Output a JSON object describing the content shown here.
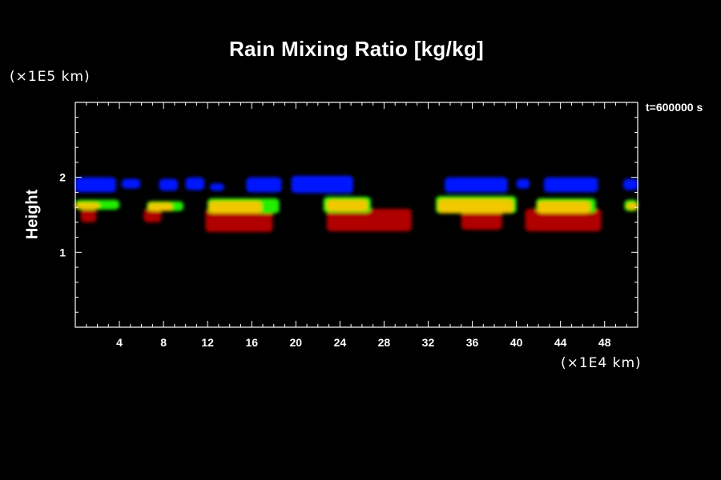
{
  "chart_data": {
    "type": "heatmap",
    "title": "Rain Mixing Ratio [kg/kg]",
    "ylabel": "Height",
    "y_unit_label": "(×1E5 km)",
    "x_unit_label": "(×1E4 km)",
    "time_label": "t=600000 s",
    "xlim": [
      0,
      51
    ],
    "ylim": [
      0,
      3
    ],
    "x_ticks": [
      4,
      8,
      12,
      16,
      20,
      24,
      28,
      32,
      36,
      40,
      44,
      48
    ],
    "y_ticks": [
      1,
      2
    ],
    "colors": {
      "blue": "#0018ff",
      "green": "#22ee00",
      "yellow": "#f2c800",
      "red": "#b00000",
      "axes": "#ffffff",
      "background": "#000000"
    },
    "regions": [
      {
        "level": "blue",
        "x": [
          0,
          3.7
        ],
        "y": [
          1.8,
          2.0
        ]
      },
      {
        "level": "blue",
        "x": [
          4.2,
          5.9
        ],
        "y": [
          1.85,
          1.98
        ]
      },
      {
        "level": "blue",
        "x": [
          7.6,
          9.3
        ],
        "y": [
          1.82,
          1.98
        ]
      },
      {
        "level": "blue",
        "x": [
          10.0,
          11.7
        ],
        "y": [
          1.83,
          2.0
        ]
      },
      {
        "level": "blue",
        "x": [
          12.2,
          13.5
        ],
        "y": [
          1.82,
          1.92
        ]
      },
      {
        "level": "blue",
        "x": [
          15.5,
          18.7
        ],
        "y": [
          1.8,
          2.0
        ]
      },
      {
        "level": "blue",
        "x": [
          19.6,
          25.2
        ],
        "y": [
          1.79,
          2.02
        ]
      },
      {
        "level": "blue",
        "x": [
          33.5,
          39.2
        ],
        "y": [
          1.8,
          2.0
        ]
      },
      {
        "level": "blue",
        "x": [
          40.0,
          41.2
        ],
        "y": [
          1.85,
          1.98
        ]
      },
      {
        "level": "blue",
        "x": [
          42.5,
          47.4
        ],
        "y": [
          1.8,
          2.0
        ]
      },
      {
        "level": "blue",
        "x": [
          49.7,
          51.0
        ],
        "y": [
          1.83,
          1.98
        ]
      },
      {
        "level": "red",
        "x": [
          0.5,
          1.9
        ],
        "y": [
          1.4,
          1.58
        ]
      },
      {
        "level": "red",
        "x": [
          6.2,
          7.8
        ],
        "y": [
          1.4,
          1.58
        ]
      },
      {
        "level": "red",
        "x": [
          11.8,
          17.9
        ],
        "y": [
          1.27,
          1.58
        ]
      },
      {
        "level": "red",
        "x": [
          22.8,
          30.5
        ],
        "y": [
          1.28,
          1.58
        ]
      },
      {
        "level": "red",
        "x": [
          35.0,
          38.7
        ],
        "y": [
          1.3,
          1.58
        ]
      },
      {
        "level": "red",
        "x": [
          40.8,
          47.7
        ],
        "y": [
          1.28,
          1.58
        ]
      },
      {
        "level": "green",
        "x": [
          0,
          4.0
        ],
        "y": [
          1.57,
          1.7
        ]
      },
      {
        "level": "green",
        "x": [
          6.5,
          9.8
        ],
        "y": [
          1.55,
          1.68
        ]
      },
      {
        "level": "green",
        "x": [
          12.0,
          18.5
        ],
        "y": [
          1.52,
          1.72
        ]
      },
      {
        "level": "green",
        "x": [
          22.5,
          26.8
        ],
        "y": [
          1.53,
          1.74
        ]
      },
      {
        "level": "green",
        "x": [
          32.7,
          40.0
        ],
        "y": [
          1.52,
          1.75
        ]
      },
      {
        "level": "green",
        "x": [
          41.8,
          47.2
        ],
        "y": [
          1.53,
          1.72
        ]
      },
      {
        "level": "green",
        "x": [
          49.8,
          51.0
        ],
        "y": [
          1.55,
          1.7
        ]
      },
      {
        "level": "yellow",
        "x": [
          0,
          2.2
        ],
        "y": [
          1.58,
          1.66
        ]
      },
      {
        "level": "yellow",
        "x": [
          6.6,
          8.8
        ],
        "y": [
          1.55,
          1.66
        ]
      },
      {
        "level": "yellow",
        "x": [
          12.1,
          16.9
        ],
        "y": [
          1.52,
          1.68
        ]
      },
      {
        "level": "yellow",
        "x": [
          22.8,
          26.5
        ],
        "y": [
          1.55,
          1.7
        ]
      },
      {
        "level": "yellow",
        "x": [
          32.9,
          39.7
        ],
        "y": [
          1.52,
          1.71
        ]
      },
      {
        "level": "yellow",
        "x": [
          41.9,
          46.7
        ],
        "y": [
          1.52,
          1.68
        ]
      },
      {
        "level": "yellow",
        "x": [
          50.0,
          51.0
        ],
        "y": [
          1.57,
          1.66
        ]
      }
    ]
  }
}
